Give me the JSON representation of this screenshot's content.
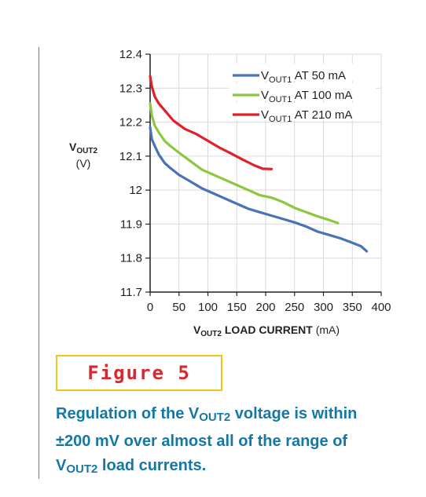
{
  "chart_data": {
    "type": "line",
    "ylabel_main": "V",
    "ylabel_sub": "OUT2",
    "ylabel_unit": "(V)",
    "xlabel_main": "V",
    "xlabel_sub": "OUT2",
    "xlabel_text": " LOAD CURRENT",
    "xlabel_unit": " (mA)",
    "xlim": [
      0,
      400
    ],
    "ylim": [
      11.7,
      12.4
    ],
    "x_ticks": [
      "0",
      "50",
      "100",
      "150",
      "200",
      "250",
      "300",
      "350",
      "400"
    ],
    "y_ticks": [
      "12.4",
      "12.3",
      "12.2",
      "12.1",
      "12",
      "11.9",
      "11.8",
      "11.7"
    ],
    "grid": true,
    "legend_position": "top-right",
    "series": [
      {
        "legend_main": "V",
        "legend_sub": "OUT1",
        "legend_rest": " AT 50 mA",
        "color": "#4a72b8",
        "x": [
          0,
          3,
          8,
          15,
          25,
          35,
          50,
          70,
          90,
          110,
          130,
          150,
          170,
          190,
          210,
          230,
          250,
          270,
          290,
          310,
          330,
          350,
          365,
          375
        ],
        "y": [
          12.185,
          12.15,
          12.13,
          12.105,
          12.08,
          12.065,
          12.045,
          12.025,
          12.005,
          11.99,
          11.975,
          11.96,
          11.945,
          11.935,
          11.925,
          11.915,
          11.905,
          11.893,
          11.878,
          11.868,
          11.858,
          11.845,
          11.835,
          11.82
        ]
      },
      {
        "legend_main": "V",
        "legend_sub": "OUT1",
        "legend_rest": " AT 100 mA",
        "color": "#8dc63f",
        "x": [
          0,
          3,
          8,
          15,
          25,
          35,
          50,
          70,
          90,
          110,
          130,
          150,
          170,
          190,
          210,
          230,
          250,
          270,
          290,
          310,
          325
        ],
        "y": [
          12.255,
          12.22,
          12.19,
          12.17,
          12.145,
          12.13,
          12.11,
          12.085,
          12.06,
          12.045,
          12.03,
          12.015,
          12.0,
          11.985,
          11.978,
          11.965,
          11.948,
          11.935,
          11.923,
          11.912,
          11.903
        ]
      },
      {
        "legend_main": "V",
        "legend_sub": "OUT1",
        "legend_rest": " AT 210 mA",
        "color": "#e02128",
        "x": [
          0,
          3,
          8,
          15,
          25,
          40,
          60,
          80,
          100,
          120,
          140,
          160,
          180,
          195,
          210
        ],
        "y": [
          12.335,
          12.305,
          12.275,
          12.255,
          12.235,
          12.205,
          12.18,
          12.165,
          12.145,
          12.125,
          12.108,
          12.09,
          12.073,
          12.063,
          12.062
        ]
      }
    ]
  },
  "figure_label": "Figure 5",
  "caption": {
    "line1_pre": "Regulation of the V",
    "line1_sub": "OUT2",
    "line1_post": " voltage is within",
    "line2": "±200 mV over almost all of the range of",
    "line3_main": "V",
    "line3_sub": "OUT2",
    "line3_post": " load currents."
  }
}
